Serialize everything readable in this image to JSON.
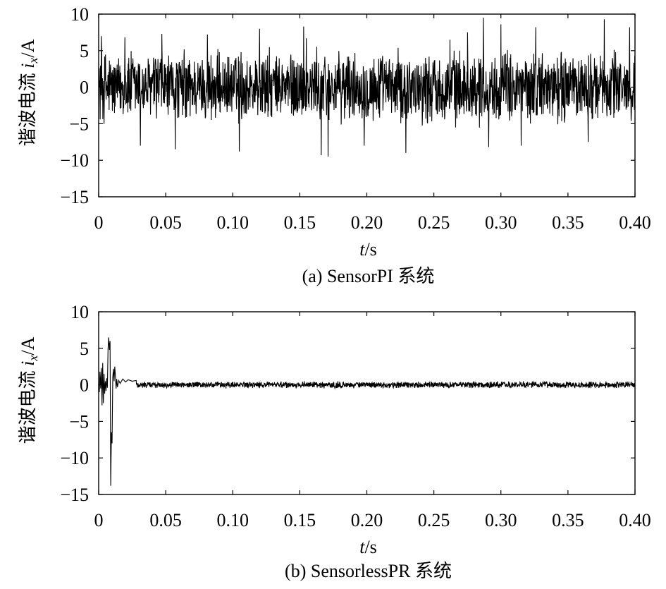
{
  "chart_data": [
    {
      "type": "line",
      "caption": "(a) SensorPI 系统",
      "ylabel_text": "谐波电流 ",
      "ylabel_var": "i",
      "ylabel_sub": "x",
      "ylabel_unit": "/A",
      "xlabel_var": "t",
      "xlabel_unit": "/s",
      "xlim": [
        0,
        0.4
      ],
      "ylim": [
        -15,
        10
      ],
      "xticks": [
        0,
        0.05,
        0.1,
        0.15,
        0.2,
        0.25,
        0.3,
        0.35,
        0.4
      ],
      "xtick_labels": [
        "0",
        "0.05",
        "0.10",
        "0.15",
        "0.20",
        "0.25",
        "0.30",
        "0.35",
        "0.40"
      ],
      "yticks": [
        10,
        5,
        0,
        -5,
        -10,
        -15
      ],
      "ytick_labels": [
        "10",
        "5",
        "0",
        "−5",
        "−10",
        "−15"
      ],
      "grid": false,
      "series": [
        {
          "style": "noise",
          "color": "#000000",
          "seed": 12345,
          "samples": 1800,
          "base_amplitude": 5.2,
          "envelope_amplitude": 0.6,
          "envelope_period": 0.02,
          "spikes": [
            {
              "x": 0.002,
              "y": 7.0
            },
            {
              "x": 0.0195,
              "y": 6.8
            },
            {
              "x": 0.031,
              "y": -8.0
            },
            {
              "x": 0.047,
              "y": 7.3
            },
            {
              "x": 0.057,
              "y": -8.5
            },
            {
              "x": 0.081,
              "y": 7.2
            },
            {
              "x": 0.105,
              "y": -8.8
            },
            {
              "x": 0.12,
              "y": 8.0
            },
            {
              "x": 0.153,
              "y": 8.3
            },
            {
              "x": 0.155,
              "y": 6.7
            },
            {
              "x": 0.166,
              "y": -9.3
            },
            {
              "x": 0.171,
              "y": -9.5
            },
            {
              "x": 0.198,
              "y": -8.0
            },
            {
              "x": 0.229,
              "y": -9.0
            },
            {
              "x": 0.262,
              "y": 6.5
            },
            {
              "x": 0.275,
              "y": 7.5
            },
            {
              "x": 0.287,
              "y": 9.5
            },
            {
              "x": 0.291,
              "y": -8.2
            },
            {
              "x": 0.3,
              "y": 8.6
            },
            {
              "x": 0.315,
              "y": -8.0
            },
            {
              "x": 0.326,
              "y": 8.2
            },
            {
              "x": 0.365,
              "y": -7.5
            },
            {
              "x": 0.377,
              "y": 9.3
            },
            {
              "x": 0.396,
              "y": 8.2
            }
          ]
        }
      ]
    },
    {
      "type": "line",
      "caption": "(b) SensorlessPR 系统",
      "ylabel_text": "谐波电流 ",
      "ylabel_var": "i",
      "ylabel_sub": "x",
      "ylabel_unit": "/A",
      "xlabel_var": "t",
      "xlabel_unit": "/s",
      "xlim": [
        0,
        0.4
      ],
      "ylim": [
        -15,
        10
      ],
      "xticks": [
        0,
        0.05,
        0.1,
        0.15,
        0.2,
        0.25,
        0.3,
        0.35,
        0.4
      ],
      "xtick_labels": [
        "0",
        "0.05",
        "0.10",
        "0.15",
        "0.20",
        "0.25",
        "0.30",
        "0.35",
        "0.40"
      ],
      "yticks": [
        10,
        5,
        0,
        -5,
        -10,
        -15
      ],
      "ytick_labels": [
        "10",
        "5",
        "0",
        "−5",
        "−10",
        "−15"
      ],
      "grid": false,
      "series": [
        {
          "style": "transient",
          "color": "#000000",
          "seed": 67890,
          "samples": 1800,
          "steady_amplitude": 0.5,
          "transient_points": [
            {
              "x": 0.0,
              "y": 0.3
            },
            {
              "x": 0.0005,
              "y": -1.0
            },
            {
              "x": 0.001,
              "y": 1.8
            },
            {
              "x": 0.0015,
              "y": -0.5
            },
            {
              "x": 0.002,
              "y": 2.3
            },
            {
              "x": 0.0025,
              "y": -2.8
            },
            {
              "x": 0.003,
              "y": 3.0
            },
            {
              "x": 0.0035,
              "y": -2.5
            },
            {
              "x": 0.004,
              "y": 1.5
            },
            {
              "x": 0.0045,
              "y": -1.2
            },
            {
              "x": 0.005,
              "y": 0.5
            },
            {
              "x": 0.0055,
              "y": -0.8
            },
            {
              "x": 0.006,
              "y": 0.9
            },
            {
              "x": 0.0065,
              "y": -0.4
            },
            {
              "x": 0.007,
              "y": 5.0
            },
            {
              "x": 0.0075,
              "y": 6.5
            },
            {
              "x": 0.008,
              "y": 4.8
            },
            {
              "x": 0.0085,
              "y": 6.0
            },
            {
              "x": 0.009,
              "y": -13.8
            },
            {
              "x": 0.0095,
              "y": -6.5
            },
            {
              "x": 0.01,
              "y": -8.0
            },
            {
              "x": 0.0105,
              "y": 1.0
            },
            {
              "x": 0.011,
              "y": 2.2
            },
            {
              "x": 0.0115,
              "y": 0.5
            },
            {
              "x": 0.012,
              "y": 2.5
            },
            {
              "x": 0.0125,
              "y": 1.2
            },
            {
              "x": 0.013,
              "y": -0.5
            },
            {
              "x": 0.0135,
              "y": 0.8
            },
            {
              "x": 0.014,
              "y": -0.3
            },
            {
              "x": 0.015,
              "y": 0.6
            },
            {
              "x": 0.016,
              "y": 0.2
            },
            {
              "x": 0.018,
              "y": 0.8
            },
            {
              "x": 0.02,
              "y": 0.4
            },
            {
              "x": 0.022,
              "y": 0.7
            },
            {
              "x": 0.025,
              "y": 0.5
            },
            {
              "x": 0.028,
              "y": 0.6
            }
          ]
        }
      ]
    }
  ]
}
